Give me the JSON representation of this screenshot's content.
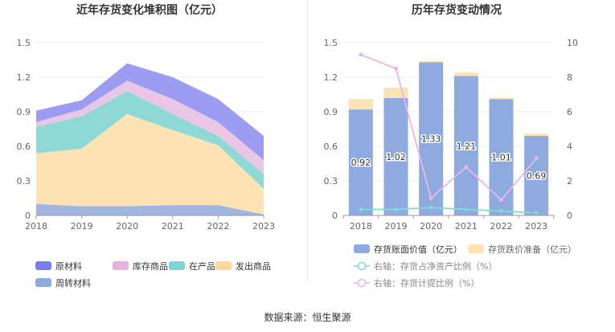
{
  "source_text": "数据来源：恒生聚源",
  "chart_data": [
    {
      "type": "area",
      "stacked": true,
      "title": "近年存货变化堆积图（亿元）",
      "x": [
        "2018",
        "2019",
        "2020",
        "2021",
        "2022",
        "2023"
      ],
      "ylim": [
        0,
        1.5
      ],
      "yticks": [
        "0",
        "0.3",
        "0.6",
        "0.9",
        "1.2",
        "1.5"
      ],
      "grid": true,
      "legend_position": "bottom",
      "series": [
        {
          "name": "周转材料",
          "color": "#9fb7e0",
          "values": [
            0.1,
            0.08,
            0.08,
            0.09,
            0.09,
            0.01
          ]
        },
        {
          "name": "发出商品",
          "color": "#fde3b3",
          "values": [
            0.44,
            0.5,
            0.8,
            0.65,
            0.52,
            0.22
          ]
        },
        {
          "name": "在产品",
          "color": "#8ed9d5",
          "values": [
            0.23,
            0.28,
            0.2,
            0.14,
            0.08,
            0.13
          ]
        },
        {
          "name": "库存商品",
          "color": "#eac6e6",
          "values": [
            0.04,
            0.06,
            0.09,
            0.13,
            0.12,
            0.12
          ]
        },
        {
          "name": "原材料",
          "color": "#9b9cf2",
          "values": [
            0.1,
            0.08,
            0.15,
            0.19,
            0.2,
            0.21
          ]
        }
      ],
      "legend_order": [
        "原材料",
        "库存商品",
        "在产品",
        "发出商品",
        "周转材料"
      ],
      "legend_colors": {
        "原材料": "#7b7cf0",
        "库存商品": "#e6b3e1",
        "在产品": "#7dd6d2",
        "发出商品": "#fcd79a",
        "周转材料": "#8eaadf"
      }
    },
    {
      "type": "bar",
      "stacked": true,
      "title": "历年存货变动情况",
      "x": [
        "2018",
        "2019",
        "2020",
        "2021",
        "2022",
        "2023"
      ],
      "ylim": [
        0,
        1.5
      ],
      "yticks": [
        "0",
        "0.3",
        "0.6",
        "0.9",
        "1.2",
        "1.5"
      ],
      "y2lim": [
        0,
        10
      ],
      "y2ticks": [
        "0",
        "2",
        "4",
        "6",
        "8",
        "10"
      ],
      "grid": true,
      "legend_position": "bottom",
      "series": [
        {
          "name": "存货账面价值（亿元）",
          "kind": "bar",
          "axis": "left",
          "color": "#8eaadf",
          "values": [
            0.92,
            1.02,
            1.33,
            1.21,
            1.01,
            0.69
          ],
          "labels": [
            "0.92",
            "1.02",
            "1.33",
            "1.21",
            "1.01",
            "0.69"
          ]
        },
        {
          "name": "存货跌价准备（亿元）",
          "kind": "bar",
          "axis": "left",
          "color": "#fde3b3",
          "values": [
            0.09,
            0.09,
            0.01,
            0.03,
            0.01,
            0.02
          ]
        },
        {
          "name": "右轴：存货占净资产比例（%）",
          "kind": "line",
          "axis": "right",
          "color": "#7fdad6",
          "values": [
            0.35,
            0.35,
            0.45,
            0.35,
            0.25,
            0.15
          ]
        },
        {
          "name": "右轴：存货计提比例（%）",
          "kind": "line",
          "axis": "right",
          "color": "#eab4e4",
          "values": [
            9.3,
            8.5,
            1.0,
            2.8,
            0.9,
            3.3
          ]
        }
      ]
    }
  ]
}
